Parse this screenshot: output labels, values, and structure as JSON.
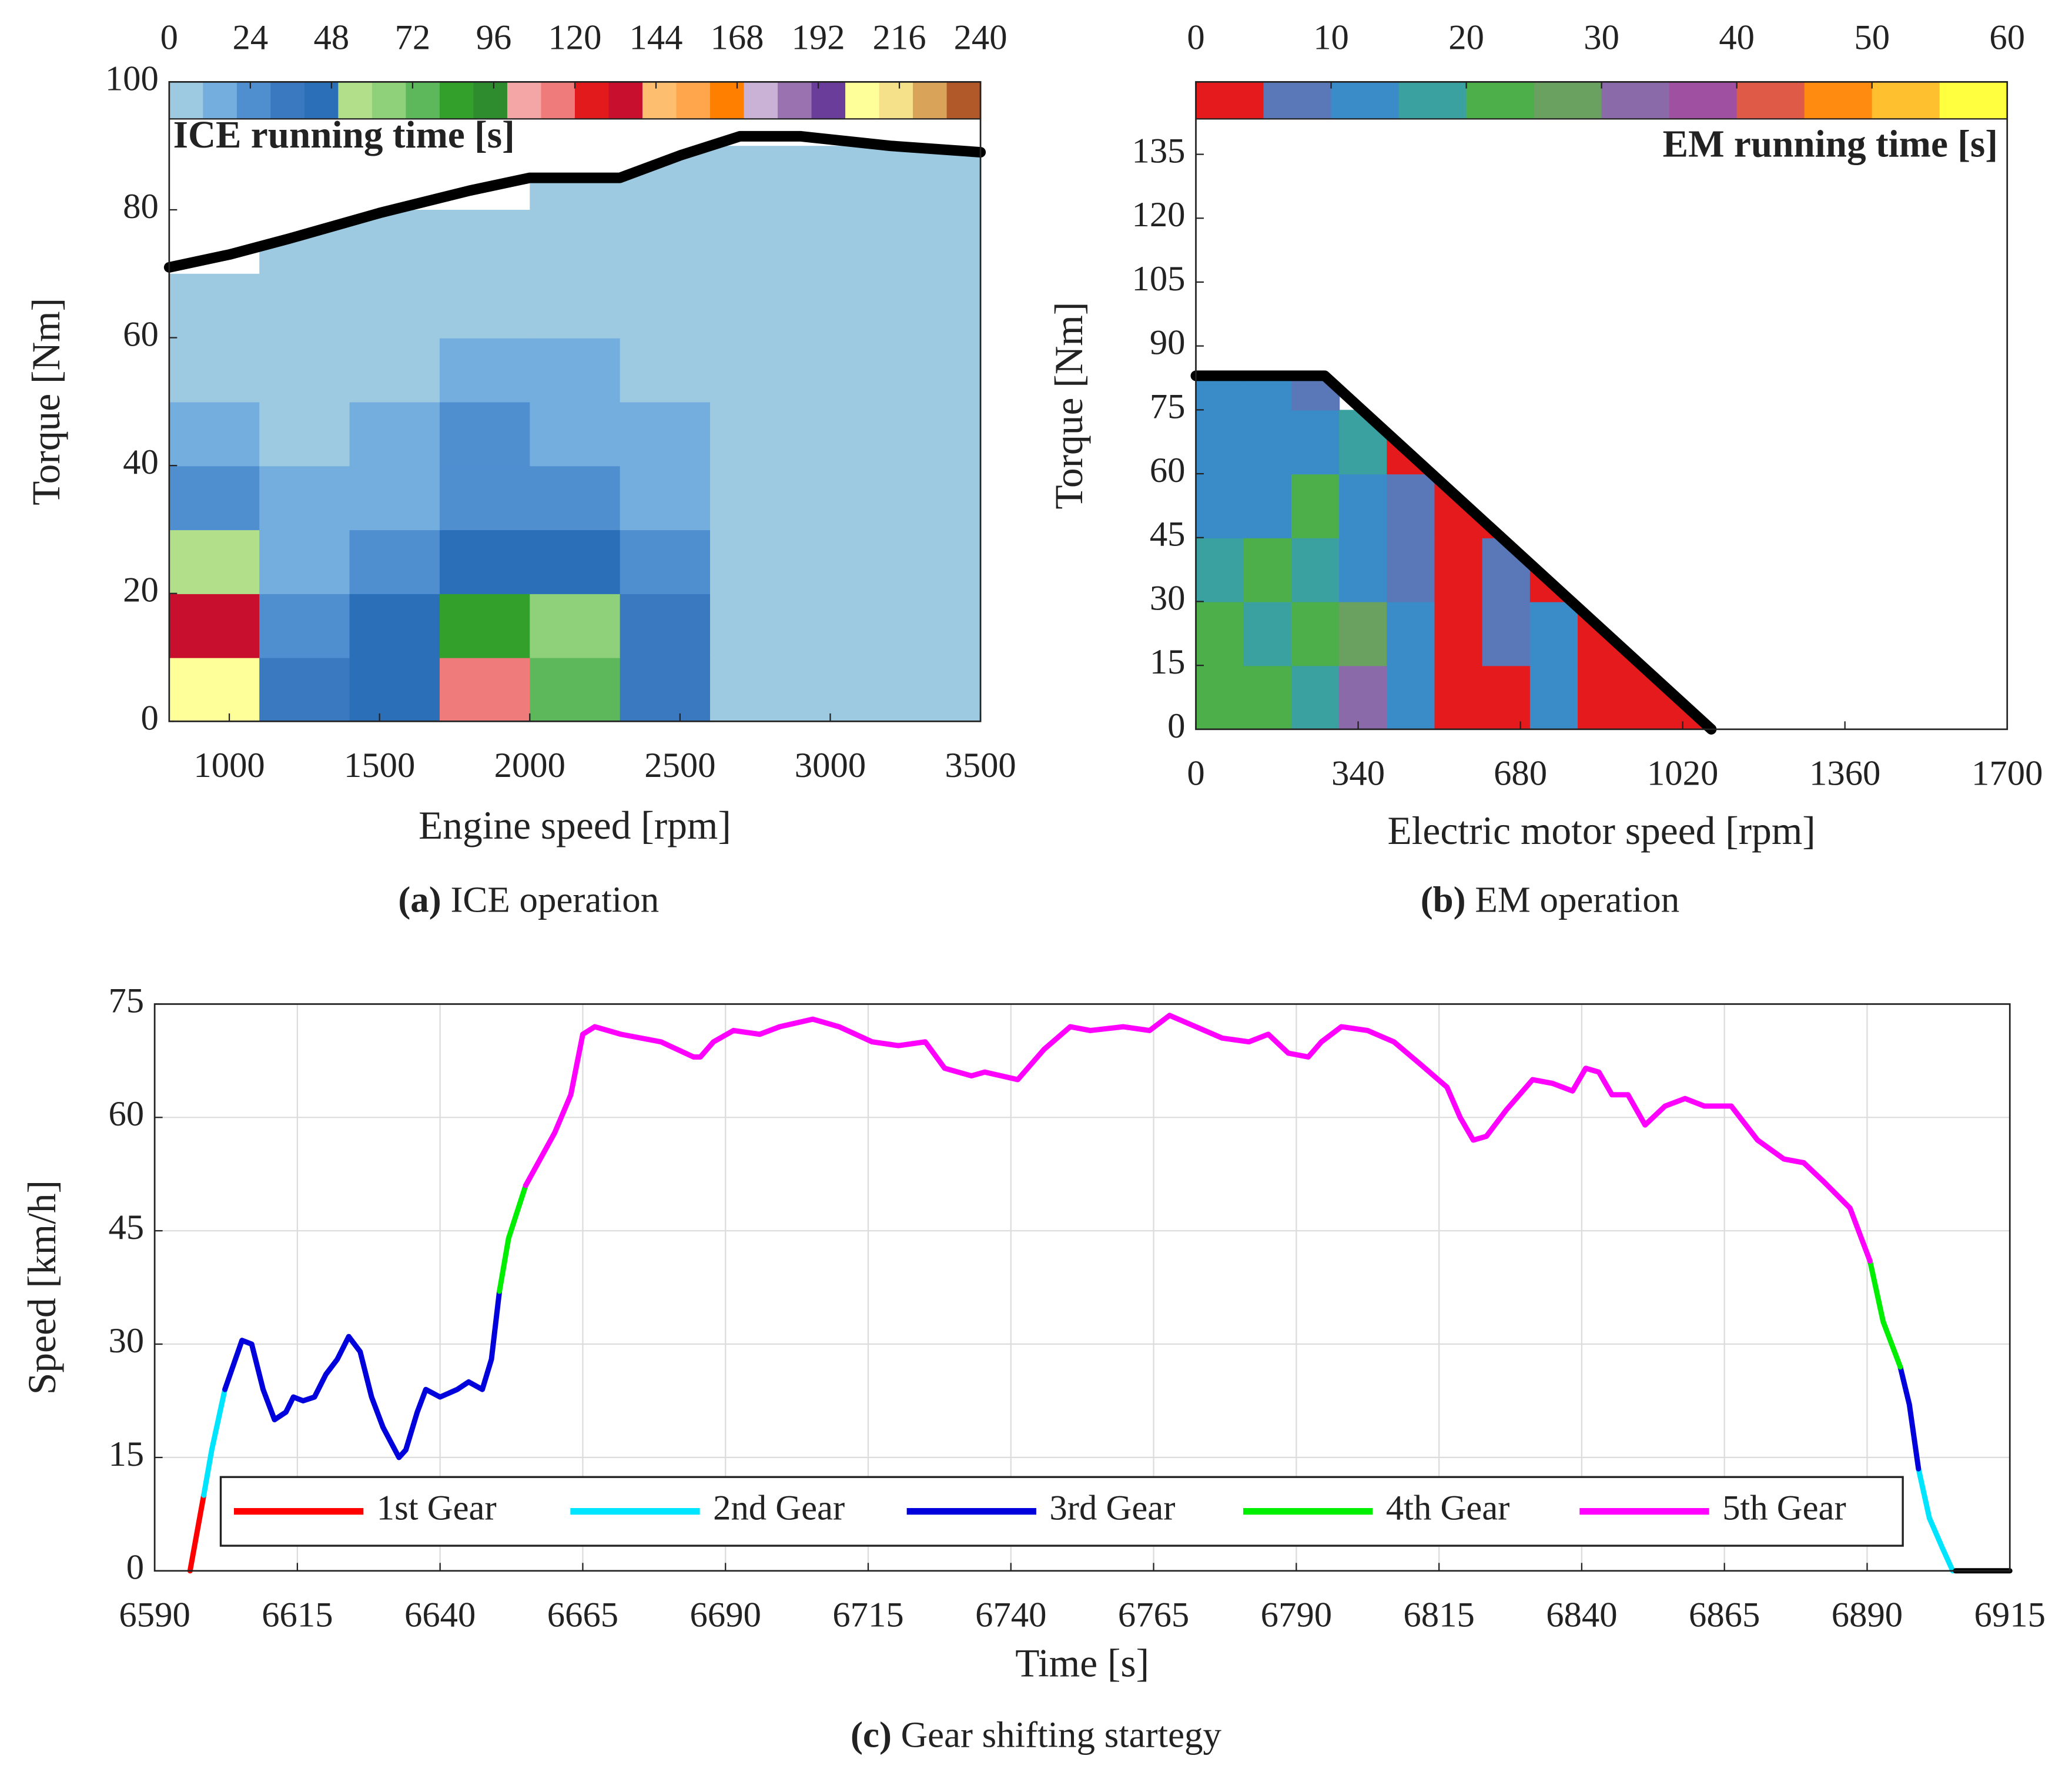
{
  "chart_data": [
    {
      "type": "contour",
      "title": "ICE running time [s]",
      "xlabel": "Engine speed [rpm]",
      "ylabel": "Torque [Nm]",
      "caption_label": "(a)",
      "caption": "ICE operation",
      "xlim": [
        800,
        3500
      ],
      "xticks": [
        1000,
        1500,
        2000,
        2500,
        3000,
        3500
      ],
      "ylim": [
        0,
        100
      ],
      "yticks": [
        0,
        20,
        40,
        60,
        80,
        100
      ],
      "clim": [
        0,
        240
      ],
      "cticks": [
        0,
        24,
        48,
        72,
        96,
        120,
        144,
        168,
        192,
        216,
        240
      ],
      "colormap": [
        "#9ecae1",
        "#74aede",
        "#4f8fd0",
        "#3a78c0",
        "#2b6fb8",
        "#b2df8a",
        "#8fd17a",
        "#5db85c",
        "#33a02c",
        "#2e8b2e",
        "#f4a6a6",
        "#ef7b7b",
        "#e31a1c",
        "#c8102e",
        "#fdbf6f",
        "#ffa64d",
        "#ff7f00",
        "#cab2d6",
        "#9b72b0",
        "#6a3d9a",
        "#ffff99",
        "#f5e18a",
        "#d9a35a",
        "#b15928"
      ],
      "x": [
        950,
        1250,
        1550,
        1850,
        2150,
        2450,
        2750,
        3050,
        3350
      ],
      "y": [
        5,
        15,
        25,
        35,
        45,
        55,
        65,
        75,
        85
      ],
      "z": [
        [
          200,
          30,
          45,
          110,
          70,
          30,
          5,
          0,
          0
        ],
        [
          130,
          25,
          45,
          80,
          60,
          30,
          8,
          0,
          0
        ],
        [
          50,
          15,
          20,
          45,
          40,
          20,
          5,
          0,
          0
        ],
        [
          25,
          10,
          12,
          25,
          22,
          14,
          3,
          0,
          0
        ],
        [
          14,
          8,
          10,
          20,
          14,
          10,
          2,
          0,
          0
        ],
        [
          8,
          3,
          8,
          12,
          12,
          8,
          1,
          0,
          0
        ],
        [
          2,
          1,
          3,
          6,
          5,
          3,
          0,
          0,
          0
        ],
        [
          null,
          0,
          0,
          0,
          0,
          0,
          0,
          0,
          0
        ],
        [
          null,
          null,
          null,
          null,
          0,
          0,
          0,
          0,
          0
        ]
      ],
      "limit": {
        "color": "#000000",
        "x": [
          800,
          1000,
          1200,
          1500,
          1800,
          2000,
          2300,
          2500,
          2700,
          2900,
          3200,
          3500
        ],
        "values": [
          71,
          73,
          75.5,
          79.5,
          83,
          85,
          85,
          88.5,
          91.5,
          91.5,
          90,
          89
        ]
      }
    },
    {
      "type": "contour",
      "title": "EM running time [s]",
      "xlabel": "Electric motor speed [rpm]",
      "ylabel": "Torque [Nm]",
      "caption_label": "(b)",
      "caption": "EM operation",
      "xlim": [
        0,
        1700
      ],
      "xticks": [
        0,
        340,
        680,
        1020,
        1360,
        1700
      ],
      "ylim": [
        0,
        152
      ],
      "yticks": [
        0,
        15,
        30,
        45,
        60,
        75,
        90,
        105,
        120,
        135
      ],
      "clim": [
        0,
        60
      ],
      "cticks": [
        0,
        10,
        20,
        30,
        40,
        50,
        60
      ],
      "colormap": [
        "#e41a1c",
        "#5a78b8",
        "#3a8cc8",
        "#3aa0a0",
        "#4daf4a",
        "#6aa060",
        "#8a6aa8",
        "#a050a0",
        "#e05a48",
        "#ff8c10",
        "#ffc030",
        "#ffff40"
      ],
      "x": [
        50,
        150,
        250,
        350,
        450,
        550,
        650,
        750,
        850,
        950,
        1050
      ],
      "y": [
        7.5,
        22.5,
        37.5,
        52.5,
        67.5,
        82.5
      ],
      "z": [
        [
          20,
          22,
          15,
          30,
          12,
          4,
          2,
          10,
          2,
          1,
          1
        ],
        [
          22,
          18,
          24,
          28,
          10,
          3,
          8,
          12,
          1,
          1,
          null
        ],
        [
          15,
          20,
          18,
          14,
          8,
          2,
          6,
          1,
          1,
          null,
          null
        ],
        [
          10,
          14,
          20,
          12,
          6,
          2,
          1,
          null,
          null,
          null,
          null
        ],
        [
          12,
          10,
          12,
          16,
          1,
          null,
          null,
          null,
          null,
          null,
          null
        ],
        [
          14,
          10,
          8,
          null,
          null,
          null,
          null,
          null,
          null,
          null,
          null
        ]
      ],
      "limit": {
        "color": "#000000",
        "x": [
          0,
          270,
          1080
        ],
        "values": [
          83,
          83,
          0
        ]
      }
    },
    {
      "type": "line",
      "xlabel": "Time [s]",
      "ylabel": "Speed [km/h]",
      "caption_label": "(c)",
      "caption": "Gear shifting startegy",
      "xlim": [
        6590,
        6915
      ],
      "xticks": [
        6590,
        6615,
        6640,
        6665,
        6690,
        6715,
        6740,
        6765,
        6790,
        6815,
        6840,
        6865,
        6890,
        6915
      ],
      "ylim": [
        0,
        75
      ],
      "yticks": [
        0,
        15,
        30,
        45,
        60,
        75
      ],
      "grid": true,
      "legend": "bottom",
      "series": [
        {
          "name": "1st Gear",
          "color": "#ff0000",
          "x": [
            6596.2,
            6598.6
          ],
          "values": [
            0,
            10
          ]
        },
        {
          "name": "2nd Gear",
          "color": "#00e5ff",
          "x": [
            6598.6,
            6600,
            6602.3,
            null,
            6899,
            6900.9,
            6903.2,
            6905
          ],
          "values": [
            10,
            16,
            24,
            null,
            13.5,
            7,
            3,
            0
          ]
        },
        {
          "name": "3rd Gear",
          "color": "#0000dd",
          "x": [
            6602.3,
            6605.3,
            6607,
            6609,
            6611,
            6613,
            6614.3,
            6616,
            6618,
            6620,
            6622,
            6624,
            6626,
            6628,
            6630,
            6632.8,
            6634,
            6636,
            6637.5,
            6640,
            6643,
            6645,
            6647.4,
            6649,
            6650.4,
            null,
            6895.8,
            6897.4,
            6899
          ],
          "values": [
            24,
            30.5,
            30,
            24,
            20,
            21,
            23,
            22.5,
            23,
            26,
            28,
            31,
            29,
            23,
            19,
            15,
            16,
            21,
            24,
            23,
            24,
            25,
            24,
            28,
            37,
            null,
            27,
            22,
            13.5
          ]
        },
        {
          "name": "4th Gear",
          "color": "#00ee00",
          "x": [
            6650.4,
            6652,
            6655,
            null,
            6890.5,
            6892.8,
            6895.8
          ],
          "values": [
            37,
            44,
            51,
            null,
            41,
            33,
            27
          ]
        },
        {
          "name": "5th Gear",
          "color": "#ff00ff",
          "x": [
            6655,
            6660.1,
            6662.9,
            6665,
            6667.1,
            6671.7,
            6678.7,
            6684.4,
            6685.6,
            6687.9,
            6691.4,
            6696,
            6699.5,
            6705.3,
            6709.9,
            6715.7,
            6720.3,
            6725,
            6728.4,
            6733.1,
            6735.4,
            6741.2,
            6745.8,
            6750.4,
            6753.9,
            6759.7,
            6764.3,
            6767.8,
            6772.4,
            6777,
            6781.7,
            6785.1,
            6788.6,
            6792.1,
            6794.4,
            6797.9,
            6802.5,
            6807.1,
            6811.8,
            6816.4,
            6818.7,
            6821,
            6823.3,
            6826.8,
            6831.4,
            6834.9,
            6838.4,
            6840.7,
            6843,
            6845.3,
            6848.1,
            6851.1,
            6854.6,
            6858.1,
            6861.5,
            6866.2,
            6870.8,
            6875.4,
            6878.9,
            6882.4,
            6887,
            6890.5
          ],
          "values": [
            51,
            58,
            63,
            71,
            72,
            71,
            70,
            68,
            68,
            70,
            71.5,
            71,
            72,
            73,
            72,
            70,
            69.5,
            70,
            66.5,
            65.5,
            66,
            65,
            69,
            72,
            71.5,
            72,
            71.5,
            73.5,
            72,
            70.5,
            70,
            71,
            68.5,
            68,
            70,
            72,
            71.5,
            70,
            67,
            64,
            60,
            57,
            57.5,
            61,
            65,
            64.5,
            63.5,
            66.5,
            66,
            63,
            63,
            59,
            61.5,
            62.5,
            61.5,
            61.5,
            57,
            54.5,
            54,
            51.5,
            48,
            41
          ]
        },
        {
          "color": "#000000",
          "x": [
            6905.5,
            6915
          ],
          "values": [
            0,
            0
          ]
        }
      ]
    }
  ]
}
